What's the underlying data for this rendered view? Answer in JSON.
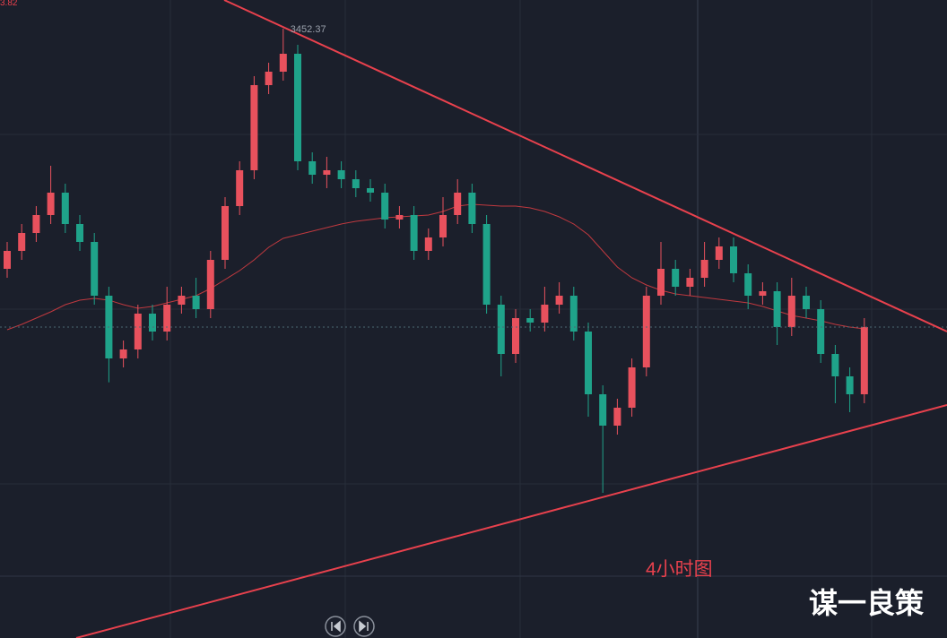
{
  "chart_data": {
    "type": "candlestick",
    "title": "4小时图",
    "watermark": "谋一良策",
    "corner_label": "3.82",
    "up_color": "#e8515d",
    "down_color": "#1fa38a",
    "ylim": [
      3044.4,
      3471.6
    ],
    "open": [
      3291.6,
      3303.6,
      3315.6,
      3327.6,
      3342.6,
      3321.6,
      3309.6,
      3273.6,
      3231.6,
      3237.6,
      3261.6,
      3249.6,
      3267.6,
      3273.6,
      3264.6,
      3297.6,
      3333.6,
      3357.6,
      3414.6,
      3423.6,
      3435.6,
      3363.6,
      3354.6,
      3357.6,
      3351.6,
      3345.6,
      3342.6,
      3324.6,
      3327.6,
      3303.6,
      3312.6,
      3327.6,
      3342.6,
      3321.6,
      3267.6,
      3234.6,
      3258.6,
      3255.6,
      3267.6,
      3273.6,
      3249.6,
      3207.6,
      3186.6,
      3198.6,
      3225.6,
      3273.6,
      3291.6,
      3279.6,
      3285.6,
      3297.6,
      3306.6,
      3288.6,
      3273.6,
      3276.6,
      3252.6,
      3273.6,
      3264.6,
      3234.6,
      3219.6,
      3207.6
    ],
    "high": [
      3309.6,
      3321.6,
      3333.6,
      3360.6,
      3348.6,
      3327.6,
      3315.6,
      3279.6,
      3243.6,
      3267.6,
      3267.6,
      3279.6,
      3279.6,
      3285.6,
      3303.6,
      3339.6,
      3363.6,
      3420.6,
      3429.6,
      3452.37,
      3441.6,
      3369.6,
      3366.6,
      3363.6,
      3357.6,
      3351.6,
      3348.6,
      3333.6,
      3333.6,
      3318.6,
      3339.6,
      3351.6,
      3348.6,
      3327.6,
      3273.6,
      3264.6,
      3264.6,
      3279.6,
      3282.6,
      3279.6,
      3255.6,
      3213.6,
      3204.6,
      3231.6,
      3279.6,
      3309.6,
      3297.6,
      3291.6,
      3309.6,
      3312.6,
      3312.6,
      3294.6,
      3282.6,
      3282.6,
      3285.6,
      3279.6,
      3270.6,
      3240.6,
      3225.6,
      3258.6
    ],
    "low": [
      3285.6,
      3297.6,
      3309.6,
      3321.6,
      3315.6,
      3303.6,
      3267.6,
      3215.6,
      3225.6,
      3231.6,
      3243.6,
      3243.6,
      3261.6,
      3258.6,
      3258.6,
      3291.6,
      3327.6,
      3351.6,
      3408.6,
      3417.6,
      3357.6,
      3348.6,
      3345.6,
      3345.6,
      3339.6,
      3336.6,
      3318.6,
      3318.6,
      3297.6,
      3297.6,
      3306.6,
      3321.6,
      3315.6,
      3261.6,
      3219.6,
      3228.6,
      3249.6,
      3249.6,
      3261.6,
      3243.6,
      3192.6,
      3141.6,
      3180.6,
      3192.6,
      3219.6,
      3267.6,
      3273.6,
      3273.6,
      3279.6,
      3291.6,
      3282.6,
      3264.6,
      3267.6,
      3240.6,
      3246.6,
      3258.6,
      3228.6,
      3201.6,
      3195.6,
      3201.6
    ],
    "close": [
      3303.6,
      3315.6,
      3327.6,
      3342.6,
      3321.6,
      3309.6,
      3273.6,
      3231.6,
      3237.6,
      3261.6,
      3249.6,
      3267.6,
      3273.6,
      3264.6,
      3297.6,
      3333.6,
      3357.6,
      3414.6,
      3423.6,
      3435.6,
      3363.6,
      3354.6,
      3357.6,
      3351.6,
      3345.6,
      3342.6,
      3324.6,
      3327.6,
      3303.6,
      3312.6,
      3327.6,
      3342.6,
      3321.6,
      3267.6,
      3234.6,
      3258.6,
      3255.6,
      3267.6,
      3273.6,
      3249.6,
      3207.6,
      3186.6,
      3198.6,
      3225.6,
      3273.6,
      3291.6,
      3279.6,
      3285.6,
      3297.6,
      3306.6,
      3288.6,
      3273.6,
      3276.6,
      3252.6,
      3273.6,
      3264.6,
      3234.6,
      3219.6,
      3207.6,
      3252.6
    ],
    "series": [
      {
        "color": "#c0393f",
        "values": [
          3250.8,
          3254.4,
          3258.6,
          3262.8,
          3267.6,
          3270.6,
          3271.8,
          3270.6,
          3267.6,
          3265.2,
          3266.4,
          3268.8,
          3271.2,
          3273.6,
          3278.4,
          3284.4,
          3290.4,
          3297.6,
          3306,
          3312,
          3314.4,
          3316.8,
          3319.2,
          3321.6,
          3323.4,
          3324.6,
          3325.8,
          3326.4,
          3327,
          3327.6,
          3330,
          3333.6,
          3334.8,
          3334.2,
          3333.6,
          3333.6,
          3332.4,
          3330,
          3326.4,
          3321.6,
          3314.4,
          3303.6,
          3292.8,
          3285.6,
          3280.8,
          3277.2,
          3274.8,
          3273.6,
          3272.4,
          3271.2,
          3270,
          3268.8,
          3266.4,
          3263.4,
          3260.4,
          3258.6,
          3256.8,
          3254.4,
          3252.6,
          3251.4
        ]
      }
    ]
  }
}
